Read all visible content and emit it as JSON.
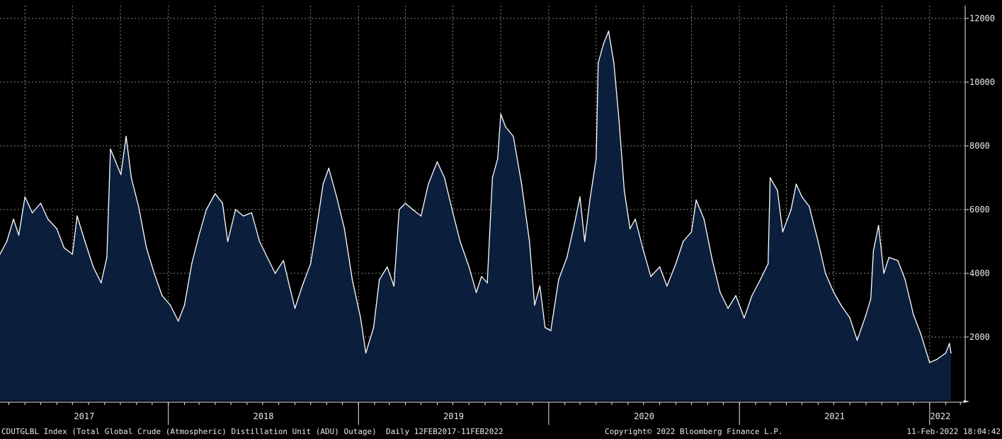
{
  "footer": {
    "description": "CDUTGLBL Index (Total Global Crude (Atmospheric) Distillation Unit (ADU) Outage)  Daily 12FEB2017-11FEB2022",
    "copyright": "Copyright© 2022 Bloomberg Finance L.P.",
    "timestamp": "11-Feb-2022 18:04:42"
  },
  "colors": {
    "background": "#000000",
    "area_fill": "#0b1f3d",
    "line": "#ffffff",
    "grid": "#8a8a8a",
    "text": "#e8e8e8"
  },
  "chart_data": {
    "type": "area",
    "title": "",
    "xlabel": "",
    "ylabel": "",
    "x_range": [
      "2017-02-12",
      "2022-02-11"
    ],
    "ylim": [
      0,
      12400
    ],
    "y_ticks": [
      2000,
      4000,
      6000,
      8000,
      10000,
      12000
    ],
    "x_tick_labels": [
      "2017",
      "2018",
      "2019",
      "2020",
      "2021",
      "2022"
    ],
    "grid": true,
    "y_axis_side": "right",
    "series": [
      {
        "points": [
          [
            "2017-02-12",
            4600
          ],
          [
            "2017-02-25",
            5000
          ],
          [
            "2017-03-10",
            5700
          ],
          [
            "2017-03-20",
            5200
          ],
          [
            "2017-04-01",
            6400
          ],
          [
            "2017-04-15",
            5900
          ],
          [
            "2017-05-01",
            6200
          ],
          [
            "2017-05-15",
            5700
          ],
          [
            "2017-06-01",
            5400
          ],
          [
            "2017-06-15",
            4800
          ],
          [
            "2017-07-01",
            4600
          ],
          [
            "2017-07-10",
            5800
          ],
          [
            "2017-07-25",
            5000
          ],
          [
            "2017-08-10",
            4200
          ],
          [
            "2017-08-25",
            3700
          ],
          [
            "2017-09-05",
            4500
          ],
          [
            "2017-09-12",
            7900
          ],
          [
            "2017-09-22",
            7500
          ],
          [
            "2017-10-02",
            7100
          ],
          [
            "2017-10-12",
            8300
          ],
          [
            "2017-10-22",
            7000
          ],
          [
            "2017-11-05",
            6100
          ],
          [
            "2017-11-20",
            4800
          ],
          [
            "2017-12-05",
            4000
          ],
          [
            "2017-12-20",
            3300
          ],
          [
            "2018-01-05",
            3000
          ],
          [
            "2018-01-20",
            2500
          ],
          [
            "2018-02-01",
            3000
          ],
          [
            "2018-02-15",
            4300
          ],
          [
            "2018-03-01",
            5200
          ],
          [
            "2018-03-15",
            6000
          ],
          [
            "2018-04-01",
            6500
          ],
          [
            "2018-04-15",
            6200
          ],
          [
            "2018-04-25",
            5000
          ],
          [
            "2018-05-10",
            6000
          ],
          [
            "2018-05-25",
            5800
          ],
          [
            "2018-06-10",
            5900
          ],
          [
            "2018-06-25",
            5000
          ],
          [
            "2018-07-10",
            4500
          ],
          [
            "2018-07-25",
            4000
          ],
          [
            "2018-08-10",
            4400
          ],
          [
            "2018-08-20",
            3700
          ],
          [
            "2018-09-01",
            2900
          ],
          [
            "2018-09-15",
            3600
          ],
          [
            "2018-10-01",
            4300
          ],
          [
            "2018-10-15",
            5700
          ],
          [
            "2018-10-25",
            6800
          ],
          [
            "2018-11-05",
            7300
          ],
          [
            "2018-11-20",
            6400
          ],
          [
            "2018-12-05",
            5400
          ],
          [
            "2018-12-20",
            3800
          ],
          [
            "2019-01-05",
            2600
          ],
          [
            "2019-01-15",
            1500
          ],
          [
            "2019-01-30",
            2300
          ],
          [
            "2019-02-10",
            3800
          ],
          [
            "2019-02-25",
            4200
          ],
          [
            "2019-03-10",
            3600
          ],
          [
            "2019-03-20",
            6000
          ],
          [
            "2019-04-01",
            6200
          ],
          [
            "2019-04-15",
            6000
          ],
          [
            "2019-05-01",
            5800
          ],
          [
            "2019-05-15",
            6800
          ],
          [
            "2019-06-01",
            7500
          ],
          [
            "2019-06-15",
            7000
          ],
          [
            "2019-07-01",
            5900
          ],
          [
            "2019-07-15",
            5000
          ],
          [
            "2019-08-01",
            4200
          ],
          [
            "2019-08-15",
            3400
          ],
          [
            "2019-08-25",
            3900
          ],
          [
            "2019-09-05",
            3700
          ],
          [
            "2019-09-15",
            7000
          ],
          [
            "2019-09-25",
            7600
          ],
          [
            "2019-10-01",
            9000
          ],
          [
            "2019-10-10",
            8600
          ],
          [
            "2019-10-25",
            8300
          ],
          [
            "2019-11-10",
            6800
          ],
          [
            "2019-11-25",
            5000
          ],
          [
            "2019-12-05",
            3000
          ],
          [
            "2019-12-15",
            3600
          ],
          [
            "2019-12-25",
            2300
          ],
          [
            "2020-01-05",
            2200
          ],
          [
            "2020-01-20",
            3800
          ],
          [
            "2020-02-05",
            4500
          ],
          [
            "2020-02-20",
            5600
          ],
          [
            "2020-03-01",
            6400
          ],
          [
            "2020-03-10",
            5000
          ],
          [
            "2020-03-20",
            6300
          ],
          [
            "2020-04-01",
            7600
          ],
          [
            "2020-04-05",
            10600
          ],
          [
            "2020-04-15",
            11200
          ],
          [
            "2020-04-25",
            11600
          ],
          [
            "2020-05-05",
            10600
          ],
          [
            "2020-05-15",
            8800
          ],
          [
            "2020-05-25",
            6600
          ],
          [
            "2020-06-05",
            5400
          ],
          [
            "2020-06-15",
            5700
          ],
          [
            "2020-07-01",
            4700
          ],
          [
            "2020-07-15",
            3900
          ],
          [
            "2020-08-01",
            4200
          ],
          [
            "2020-08-15",
            3600
          ],
          [
            "2020-09-01",
            4300
          ],
          [
            "2020-09-15",
            5000
          ],
          [
            "2020-10-01",
            5300
          ],
          [
            "2020-10-10",
            6300
          ],
          [
            "2020-10-25",
            5700
          ],
          [
            "2020-11-10",
            4400
          ],
          [
            "2020-11-25",
            3400
          ],
          [
            "2020-12-10",
            2900
          ],
          [
            "2020-12-25",
            3300
          ],
          [
            "2021-01-10",
            2600
          ],
          [
            "2021-01-25",
            3300
          ],
          [
            "2021-02-10",
            3800
          ],
          [
            "2021-02-25",
            4300
          ],
          [
            "2021-03-01",
            7000
          ],
          [
            "2021-03-15",
            6600
          ],
          [
            "2021-03-25",
            5300
          ],
          [
            "2021-04-10",
            6000
          ],
          [
            "2021-04-20",
            6800
          ],
          [
            "2021-05-01",
            6400
          ],
          [
            "2021-05-15",
            6100
          ],
          [
            "2021-06-01",
            5000
          ],
          [
            "2021-06-15",
            4000
          ],
          [
            "2021-07-01",
            3400
          ],
          [
            "2021-07-15",
            3000
          ],
          [
            "2021-08-01",
            2600
          ],
          [
            "2021-08-15",
            1900
          ],
          [
            "2021-09-01",
            2700
          ],
          [
            "2021-09-10",
            3200
          ],
          [
            "2021-09-15",
            4700
          ],
          [
            "2021-09-25",
            5500
          ],
          [
            "2021-10-05",
            4000
          ],
          [
            "2021-10-15",
            4500
          ],
          [
            "2021-11-01",
            4400
          ],
          [
            "2021-11-15",
            3800
          ],
          [
            "2021-12-01",
            2700
          ],
          [
            "2021-12-15",
            2100
          ],
          [
            "2022-01-01",
            1200
          ],
          [
            "2022-01-15",
            1300
          ],
          [
            "2022-02-01",
            1500
          ],
          [
            "2022-02-08",
            1800
          ],
          [
            "2022-02-11",
            1500
          ]
        ]
      }
    ]
  }
}
